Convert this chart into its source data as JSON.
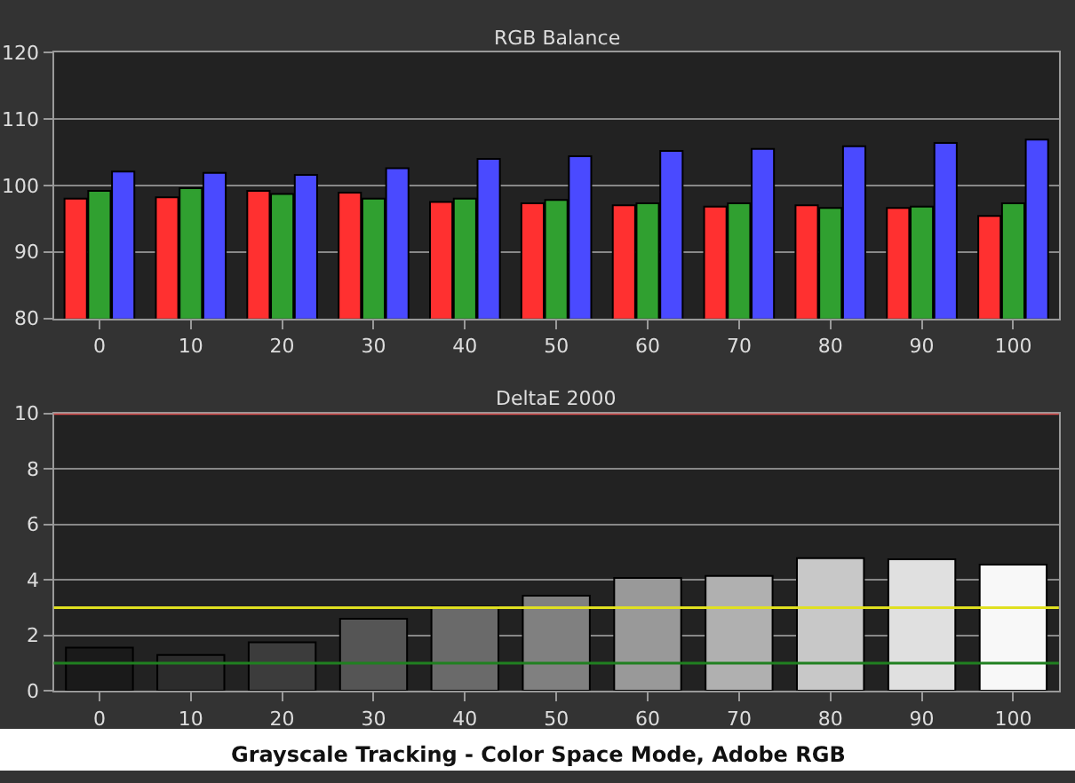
{
  "chart_data": [
    {
      "type": "bar",
      "title": "RGB Balance",
      "categories": [
        "0",
        "10",
        "20",
        "30",
        "40",
        "50",
        "60",
        "70",
        "80",
        "90",
        "100"
      ],
      "series": [
        {
          "color": "#ff3030",
          "values": [
            98.0,
            98.2,
            99.2,
            98.9,
            97.5,
            97.3,
            97.0,
            96.8,
            97.0,
            96.6,
            95.4
          ]
        },
        {
          "color": "#30a030",
          "values": [
            99.2,
            99.6,
            98.7,
            98.0,
            98.0,
            97.8,
            97.3,
            97.3,
            96.6,
            96.8,
            97.3
          ]
        },
        {
          "color": "#4a4aff",
          "values": [
            102.1,
            101.9,
            101.6,
            102.6,
            104.0,
            104.4,
            105.2,
            105.5,
            105.9,
            106.4,
            106.9
          ]
        }
      ],
      "ylim": [
        80,
        120
      ],
      "yticks": [
        80,
        90,
        100,
        110,
        120
      ],
      "grid": "y"
    },
    {
      "type": "bar",
      "title": "DeltaE 2000",
      "categories": [
        "0",
        "10",
        "20",
        "30",
        "40",
        "50",
        "60",
        "70",
        "80",
        "90",
        "100"
      ],
      "values": [
        1.56,
        1.29,
        1.75,
        2.6,
        3.03,
        3.43,
        4.07,
        4.14,
        4.78,
        4.74,
        4.55
      ],
      "colors": [
        "#1a1a1a",
        "#2c2c2c",
        "#3c3c3c",
        "#555555",
        "#6a6a6a",
        "#808080",
        "#999999",
        "#b0b0b0",
        "#c8c8c8",
        "#e0e0e0",
        "#f8f8f8"
      ],
      "ylim": [
        0,
        10
      ],
      "yticks": [
        0,
        2,
        4,
        6,
        8,
        10
      ],
      "grid": "y",
      "ref_lines": [
        {
          "axis": "y",
          "value": 10,
          "color": "#e05050"
        },
        {
          "axis": "y",
          "value": 3,
          "color": "#e0e020"
        },
        {
          "axis": "y",
          "value": 1,
          "color": "#208020"
        }
      ],
      "annotations": [
        "Grayscale Tracking - Color Space Mode, Adobe RGB"
      ]
    }
  ]
}
